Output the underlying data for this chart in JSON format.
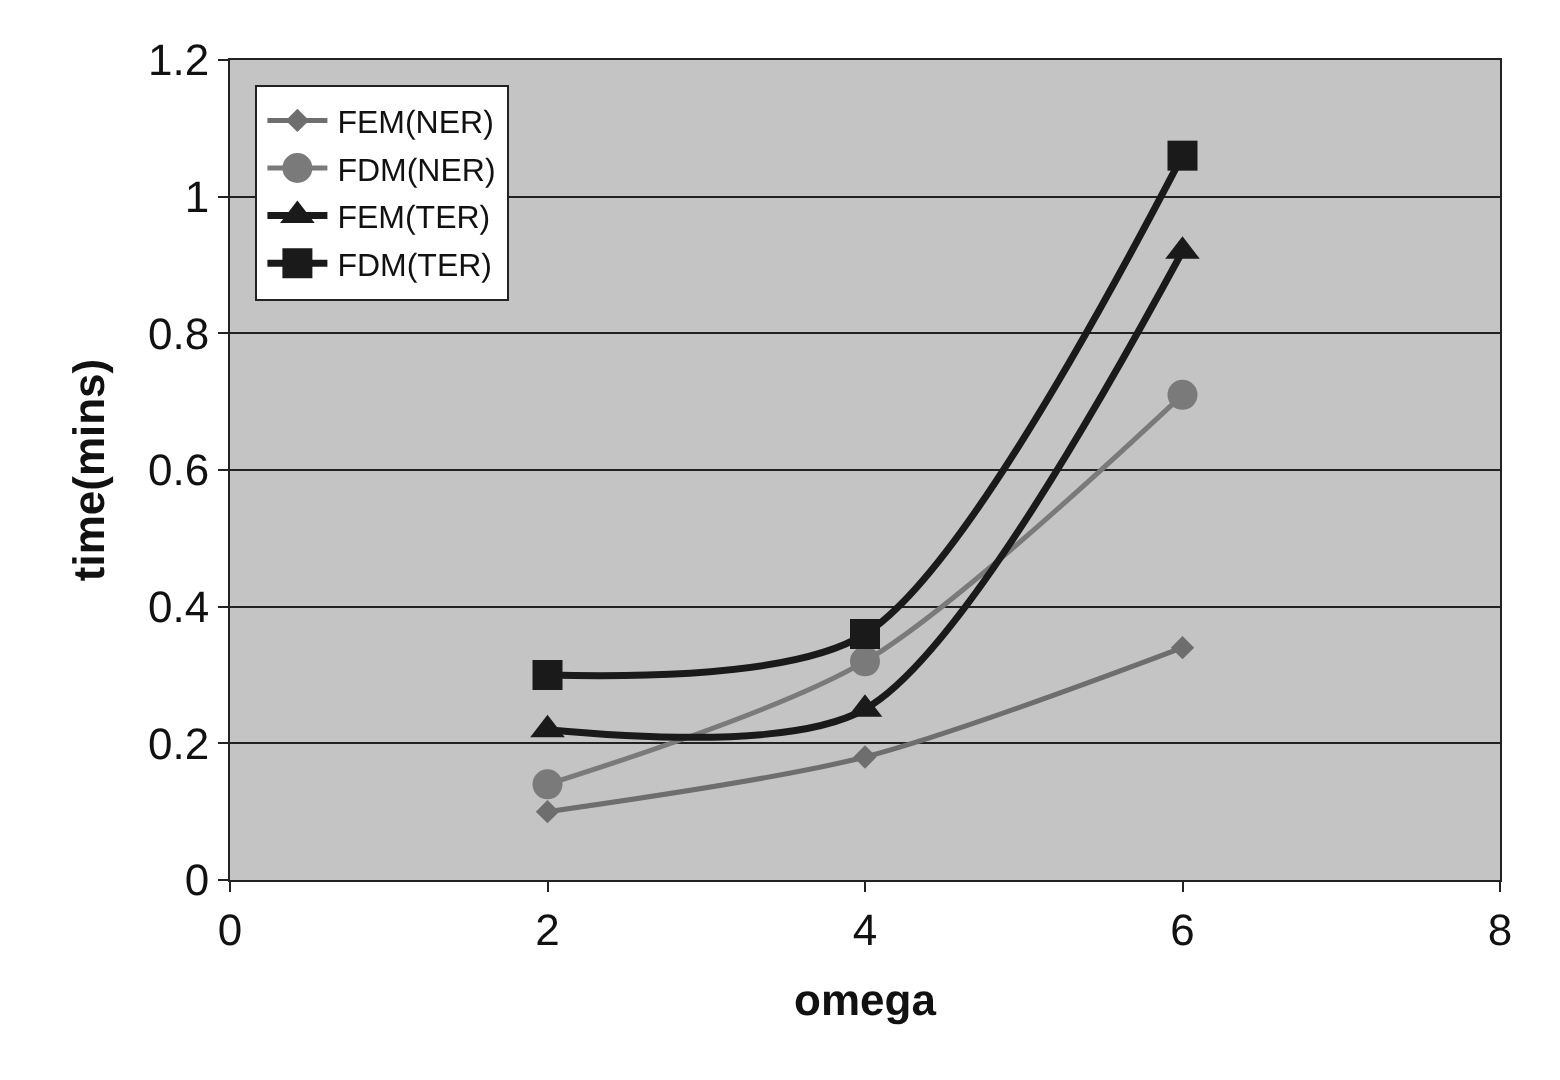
{
  "chart_data": {
    "type": "line",
    "xlabel": "omega",
    "ylabel": "time(mins)",
    "x": [
      2,
      4,
      6
    ],
    "xlim": [
      0,
      8
    ],
    "xticks": [
      0,
      2,
      4,
      6,
      8
    ],
    "ylim": [
      0,
      1.2
    ],
    "yticks": [
      0,
      0.2,
      0.4,
      0.6,
      0.8,
      1,
      1.2
    ],
    "grid": "y",
    "legend": "top left",
    "series": [
      {
        "name": "FEM(NER)",
        "color": "#6e6e6e",
        "marker": "diamond",
        "values": [
          0.1,
          0.18,
          0.34
        ]
      },
      {
        "name": "FDM(NER)",
        "color": "#7a7a7a",
        "marker": "circle",
        "values": [
          0.14,
          0.32,
          0.71
        ]
      },
      {
        "name": "FEM(TER)",
        "color": "#1a1a1a",
        "marker": "triangle",
        "values": [
          0.22,
          0.25,
          0.92
        ]
      },
      {
        "name": "FDM(TER)",
        "color": "#1a1a1a",
        "marker": "square",
        "values": [
          0.3,
          0.36,
          1.06
        ]
      }
    ]
  }
}
